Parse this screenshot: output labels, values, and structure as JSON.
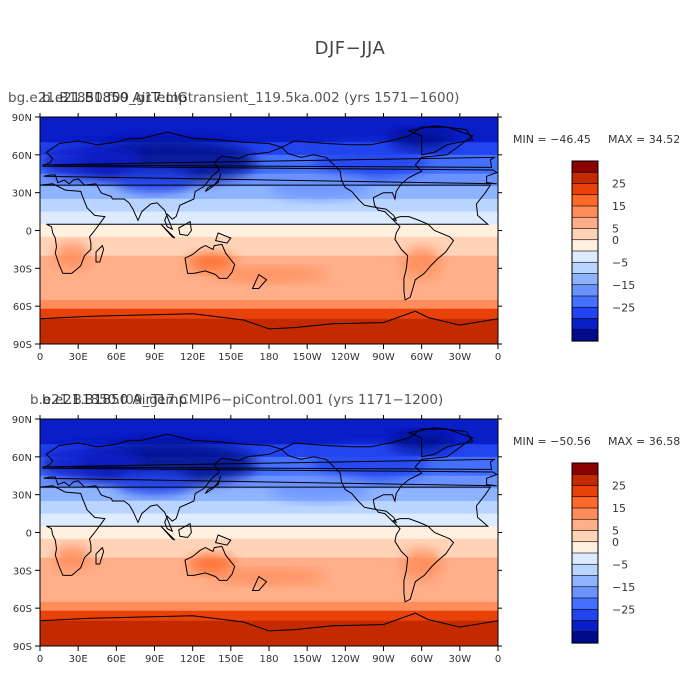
{
  "figure_title": "DJF−JJA",
  "chart_data": [
    {
      "type": "heatmap",
      "title": "bg.e21.B1850.f09_g17.LIGtransient_119.5ka.002 (yrs 1571−1600)",
      "title_overlap": "b.e21.B1850 AirTemp",
      "variable_label": "AirTemp",
      "min_label": "MIN = −46.45",
      "max_label": "MAX =  34.52",
      "xticks": [
        "0",
        "30E",
        "60E",
        "90E",
        "120E",
        "150E",
        "180",
        "150W",
        "120W",
        "90W",
        "60W",
        "30W",
        "0"
      ],
      "yticks": [
        "90N",
        "60N",
        "30N",
        "0",
        "30S",
        "60S",
        "90S"
      ],
      "colorbar": {
        "levels": [
          30,
          25,
          20,
          15,
          10,
          5,
          0,
          -5,
          -10,
          -15,
          -20,
          -25,
          -30
        ],
        "tick_labels": [
          "25",
          "15",
          "5",
          "0",
          "−5",
          "−15",
          "−25"
        ],
        "colors": [
          "#8b0000",
          "#c42a00",
          "#e8420a",
          "#ff6a2a",
          "#ff8c5a",
          "#ffae88",
          "#ffd3b8",
          "#fff0e0",
          "#dcebff",
          "#b8d4ff",
          "#8fb4ff",
          "#6b93ff",
          "#4470ff",
          "#2244ee",
          "#0a1ec8",
          "#000a8a"
        ]
      }
    },
    {
      "type": "heatmap",
      "title": "b.e21.B1850.f09_g17.CMIP6−piControl.001 (yrs 1171−1200)",
      "title_overlap": "b.e21.B1850 AirTemp",
      "variable_label": "AirTemp",
      "min_label": "MIN = −50.56",
      "max_label": "MAX =  36.58",
      "xticks": [
        "0",
        "30E",
        "60E",
        "90E",
        "120E",
        "150E",
        "180",
        "150W",
        "120W",
        "90W",
        "60W",
        "30W",
        "0"
      ],
      "yticks": [
        "90N",
        "60N",
        "30N",
        "0",
        "30S",
        "60S",
        "90S"
      ],
      "colorbar": {
        "levels": [
          30,
          25,
          20,
          15,
          10,
          5,
          0,
          -5,
          -10,
          -15,
          -20,
          -25,
          -30
        ],
        "tick_labels": [
          "25",
          "15",
          "5",
          "0",
          "−5",
          "−15",
          "−25"
        ],
        "colors": [
          "#8b0000",
          "#c42a00",
          "#e8420a",
          "#ff6a2a",
          "#ff8c5a",
          "#ffae88",
          "#ffd3b8",
          "#fff0e0",
          "#dcebff",
          "#b8d4ff",
          "#8fb4ff",
          "#6b93ff",
          "#4470ff",
          "#2244ee",
          "#0a1ec8",
          "#000a8a"
        ]
      }
    }
  ]
}
